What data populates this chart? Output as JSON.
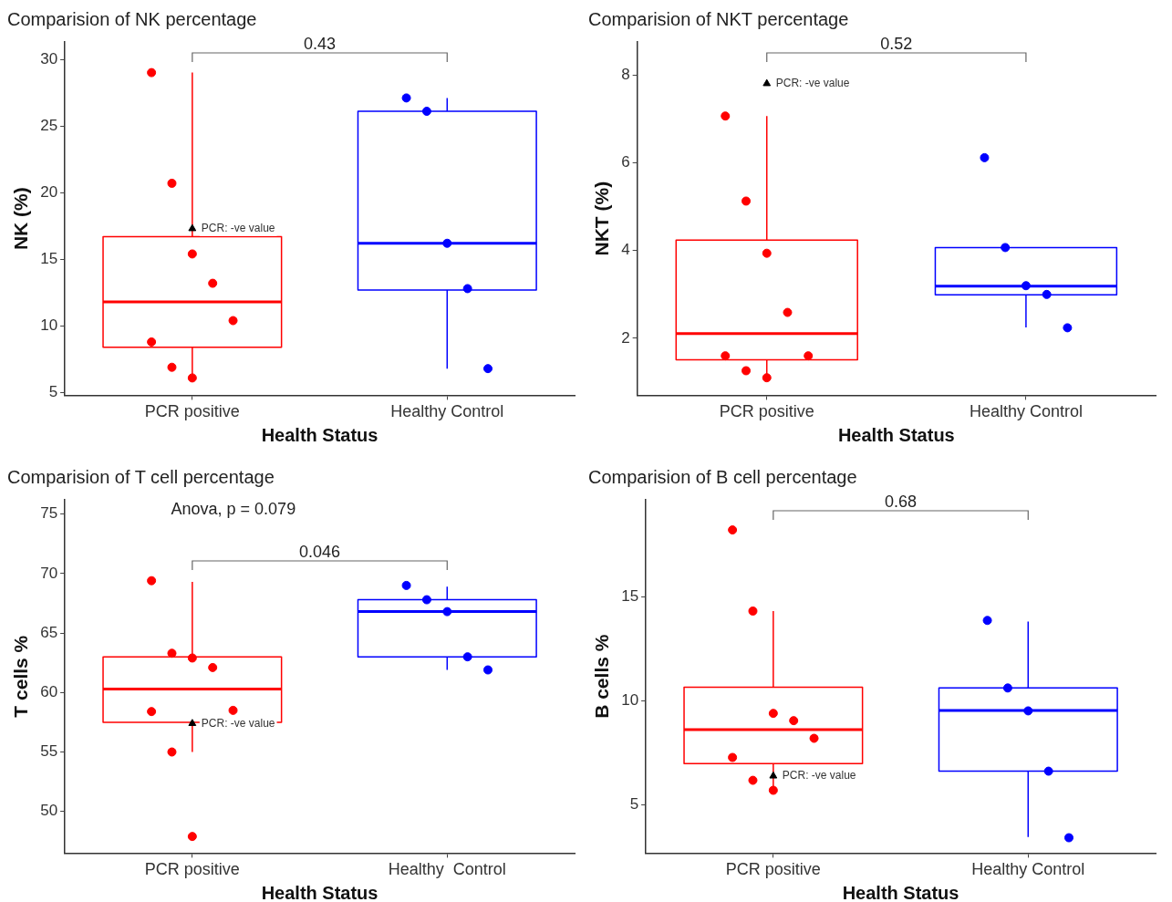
{
  "chart_data": [
    {
      "type": "box",
      "title": "Comparision of NK percentage",
      "xlabel": "Health Status",
      "ylabel": "NK (%)",
      "categories": [
        "PCR positive",
        "Healthy Control"
      ],
      "ylim": [
        4.8,
        31.3
      ],
      "yticks": [
        5,
        10,
        15,
        20,
        25,
        30
      ],
      "grid": false,
      "legend": false,
      "marker": "circle",
      "series": [
        {
          "type": "box",
          "color": "#ff0000",
          "boxes": [
            {
              "low": 6.05,
              "q1": 8.4,
              "median": 11.8,
              "q3": 16.7,
              "high": 29.0
            },
            null
          ]
        },
        {
          "type": "box",
          "color": "#0000ff",
          "boxes": [
            null,
            {
              "low": 6.8,
              "q1": 12.7,
              "median": 16.2,
              "q3": 26.1,
              "high": 27.1
            }
          ]
        },
        {
          "type": "scatter",
          "color": "#ff0000",
          "x": [
            "PCR positive",
            "PCR positive",
            "PCR positive",
            "PCR positive",
            "PCR positive",
            "PCR positive",
            "PCR positive",
            "PCR positive"
          ],
          "values": [
            29.0,
            20.7,
            15.4,
            13.2,
            10.4,
            8.8,
            6.9,
            6.1
          ]
        },
        {
          "type": "scatter",
          "color": "#0000ff",
          "x": [
            "Healthy Control",
            "Healthy Control",
            "Healthy Control",
            "Healthy Control",
            "Healthy Control"
          ],
          "values": [
            27.1,
            26.1,
            16.2,
            12.8,
            6.8
          ]
        },
        {
          "type": "scatter",
          "color": "#000000",
          "marker": "triangle",
          "x": [
            "PCR positive"
          ],
          "values": [
            17.3
          ]
        }
      ],
      "annotations": [
        "0.43",
        {
          "text": "PCR: -ve value",
          "x": "PCR positive",
          "y": 17.3
        }
      ]
    },
    {
      "type": "box",
      "title": "Comparision of NKT percentage",
      "xlabel": "Health Status",
      "ylabel": "NKT (%)",
      "categories": [
        "PCR positive",
        "Healthy Control"
      ],
      "ylim": [
        0.7,
        8.76
      ],
      "yticks": [
        2,
        4,
        6,
        8
      ],
      "grid": false,
      "legend": false,
      "marker": "circle",
      "series": [
        {
          "type": "box",
          "color": "#ff0000",
          "boxes": [
            {
              "low": 1.11,
              "q1": 1.51,
              "median": 2.11,
              "q3": 4.24,
              "high": 7.07
            },
            null
          ]
        },
        {
          "type": "box",
          "color": "#0000ff",
          "boxes": [
            null,
            {
              "low": 2.25,
              "q1": 2.99,
              "median": 3.19,
              "q3": 4.07,
              "high": 4.07
            }
          ]
        },
        {
          "type": "scatter",
          "color": "#ff0000",
          "x": [
            "PCR positive",
            "PCR positive",
            "PCR positive",
            "PCR positive",
            "PCR positive",
            "PCR positive",
            "PCR positive",
            "PCR positive"
          ],
          "values": [
            7.07,
            5.13,
            3.94,
            2.59,
            1.6,
            1.6,
            1.26,
            1.1
          ]
        },
        {
          "type": "scatter",
          "color": "#0000ff",
          "x": [
            "Healthy Control",
            "Healthy Control",
            "Healthy Control",
            "Healthy Control",
            "Healthy Control"
          ],
          "values": [
            6.12,
            4.07,
            3.2,
            3.0,
            2.24
          ]
        },
        {
          "type": "scatter",
          "color": "#000000",
          "marker": "triangle",
          "x": [
            "PCR positive"
          ],
          "values": [
            7.81
          ]
        }
      ],
      "annotations": [
        "0.52",
        {
          "text": "PCR: -ve value",
          "x": "PCR positive",
          "y": 7.81
        }
      ]
    },
    {
      "type": "box",
      "title": "Comparision of T cell percentage",
      "xlabel": "Health Status",
      "ylabel": "T cells %",
      "categories": [
        "PCR positive",
        "Healthy  Control"
      ],
      "ylim": [
        46.5,
        76.2
      ],
      "yticks": [
        50,
        55,
        60,
        65,
        70,
        75
      ],
      "grid": false,
      "legend": false,
      "marker": "circle",
      "series": [
        {
          "type": "box",
          "color": "#ff0000",
          "boxes": [
            {
              "low": 55.0,
              "q1": 57.5,
              "median": 60.3,
              "q3": 63.0,
              "high": 69.3
            },
            null
          ]
        },
        {
          "type": "box",
          "color": "#0000ff",
          "boxes": [
            null,
            {
              "low": 61.9,
              "q1": 63.0,
              "median": 66.8,
              "q3": 67.8,
              "high": 68.9
            }
          ]
        },
        {
          "type": "scatter",
          "color": "#ff0000",
          "x": [
            "PCR positive",
            "PCR positive",
            "PCR positive",
            "PCR positive",
            "PCR positive",
            "PCR positive",
            "PCR positive",
            "PCR positive"
          ],
          "values": [
            69.4,
            63.3,
            62.9,
            62.1,
            58.5,
            58.4,
            55.0,
            47.9
          ]
        },
        {
          "type": "scatter",
          "color": "#0000ff",
          "x": [
            "Healthy  Control",
            "Healthy  Control",
            "Healthy  Control",
            "Healthy  Control",
            "Healthy  Control"
          ],
          "values": [
            69.0,
            67.8,
            66.8,
            63.0,
            61.9
          ]
        },
        {
          "type": "scatter",
          "color": "#000000",
          "marker": "triangle",
          "x": [
            "PCR positive"
          ],
          "values": [
            57.4
          ]
        }
      ],
      "annotations": [
        "Anova, p = 0.079",
        "0.046",
        {
          "text": "PCR: -ve value",
          "x": "PCR positive",
          "y": 57.4
        }
      ]
    },
    {
      "type": "box",
      "title": "Comparision of B cell percentage",
      "xlabel": "Health Status",
      "ylabel": "B cells %",
      "categories": [
        "PCR positive",
        "Healthy Control"
      ],
      "ylim": [
        2.66,
        19.65
      ],
      "yticks": [
        5,
        10,
        15
      ],
      "grid": false,
      "legend": false,
      "marker": "circle",
      "series": [
        {
          "type": "box",
          "color": "#ff0000",
          "boxes": [
            {
              "low": 5.7,
              "q1": 6.96,
              "median": 8.6,
              "q3": 10.64,
              "high": 14.3
            },
            null
          ]
        },
        {
          "type": "box",
          "color": "#0000ff",
          "boxes": [
            null,
            {
              "low": 3.43,
              "q1": 6.6,
              "median": 9.52,
              "q3": 10.6,
              "high": 13.8
            }
          ]
        },
        {
          "type": "scatter",
          "color": "#ff0000",
          "x": [
            "PCR positive",
            "PCR positive",
            "PCR positive",
            "PCR positive",
            "PCR positive",
            "PCR positive",
            "PCR positive",
            "PCR positive"
          ],
          "values": [
            18.2,
            14.3,
            9.38,
            9.03,
            8.18,
            7.26,
            6.16,
            5.68
          ]
        },
        {
          "type": "scatter",
          "color": "#0000ff",
          "x": [
            "Healthy Control",
            "Healthy Control",
            "Healthy Control",
            "Healthy Control",
            "Healthy Control"
          ],
          "values": [
            13.85,
            10.6,
            9.5,
            6.6,
            3.4
          ]
        },
        {
          "type": "scatter",
          "color": "#000000",
          "marker": "triangle",
          "x": [
            "PCR positive"
          ],
          "values": [
            6.37
          ]
        }
      ],
      "annotations": [
        "0.68",
        {
          "text": "PCR: -ve value",
          "x": "PCR positive",
          "y": 6.37
        }
      ]
    }
  ]
}
